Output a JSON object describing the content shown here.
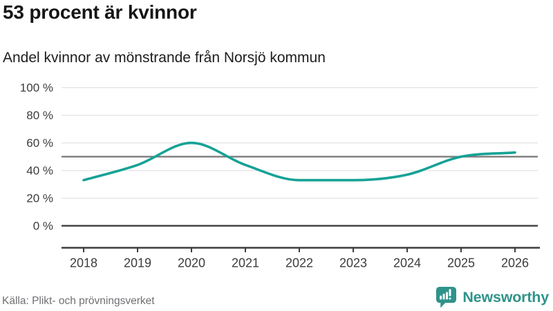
{
  "header": {
    "title": "53 procent är kvinnor",
    "subtitle": "Andel kvinnor av mönstrande från Norsjö kommun"
  },
  "chart_data": {
    "type": "line",
    "x": [
      2018,
      2019,
      2020,
      2021,
      2022,
      2023,
      2024,
      2025,
      2026
    ],
    "series": [
      {
        "name": "Andel kvinnor av mönstrande",
        "values": [
          33,
          44,
          60,
          44,
          33,
          33,
          37,
          50,
          53
        ]
      }
    ],
    "title": "53 procent är kvinnor",
    "subtitle": "Andel kvinnor av mönstrande från Norsjö kommun",
    "xlabel": "",
    "ylabel": "",
    "ylim": [
      0,
      100
    ],
    "yticks": [
      0,
      20,
      40,
      60,
      80,
      100
    ],
    "ytick_labels": [
      "0 %",
      "20 %",
      "40 %",
      "60 %",
      "80 %",
      "100 %"
    ],
    "reference_line": 50,
    "grid": true,
    "legend": "none"
  },
  "footer": {
    "source": "Källa: Plikt- och prövningsverket",
    "brand_name": "Newsworthy"
  },
  "colors": {
    "line": "#16a296",
    "grid": "#e7e7e7",
    "reference_line": "#7c7c7c",
    "axis": "#3d3d3d",
    "tick_text": "#3c3c3c",
    "muted_text": "#6f6f73",
    "brand": "#2f938a",
    "background": "#ffffff"
  }
}
